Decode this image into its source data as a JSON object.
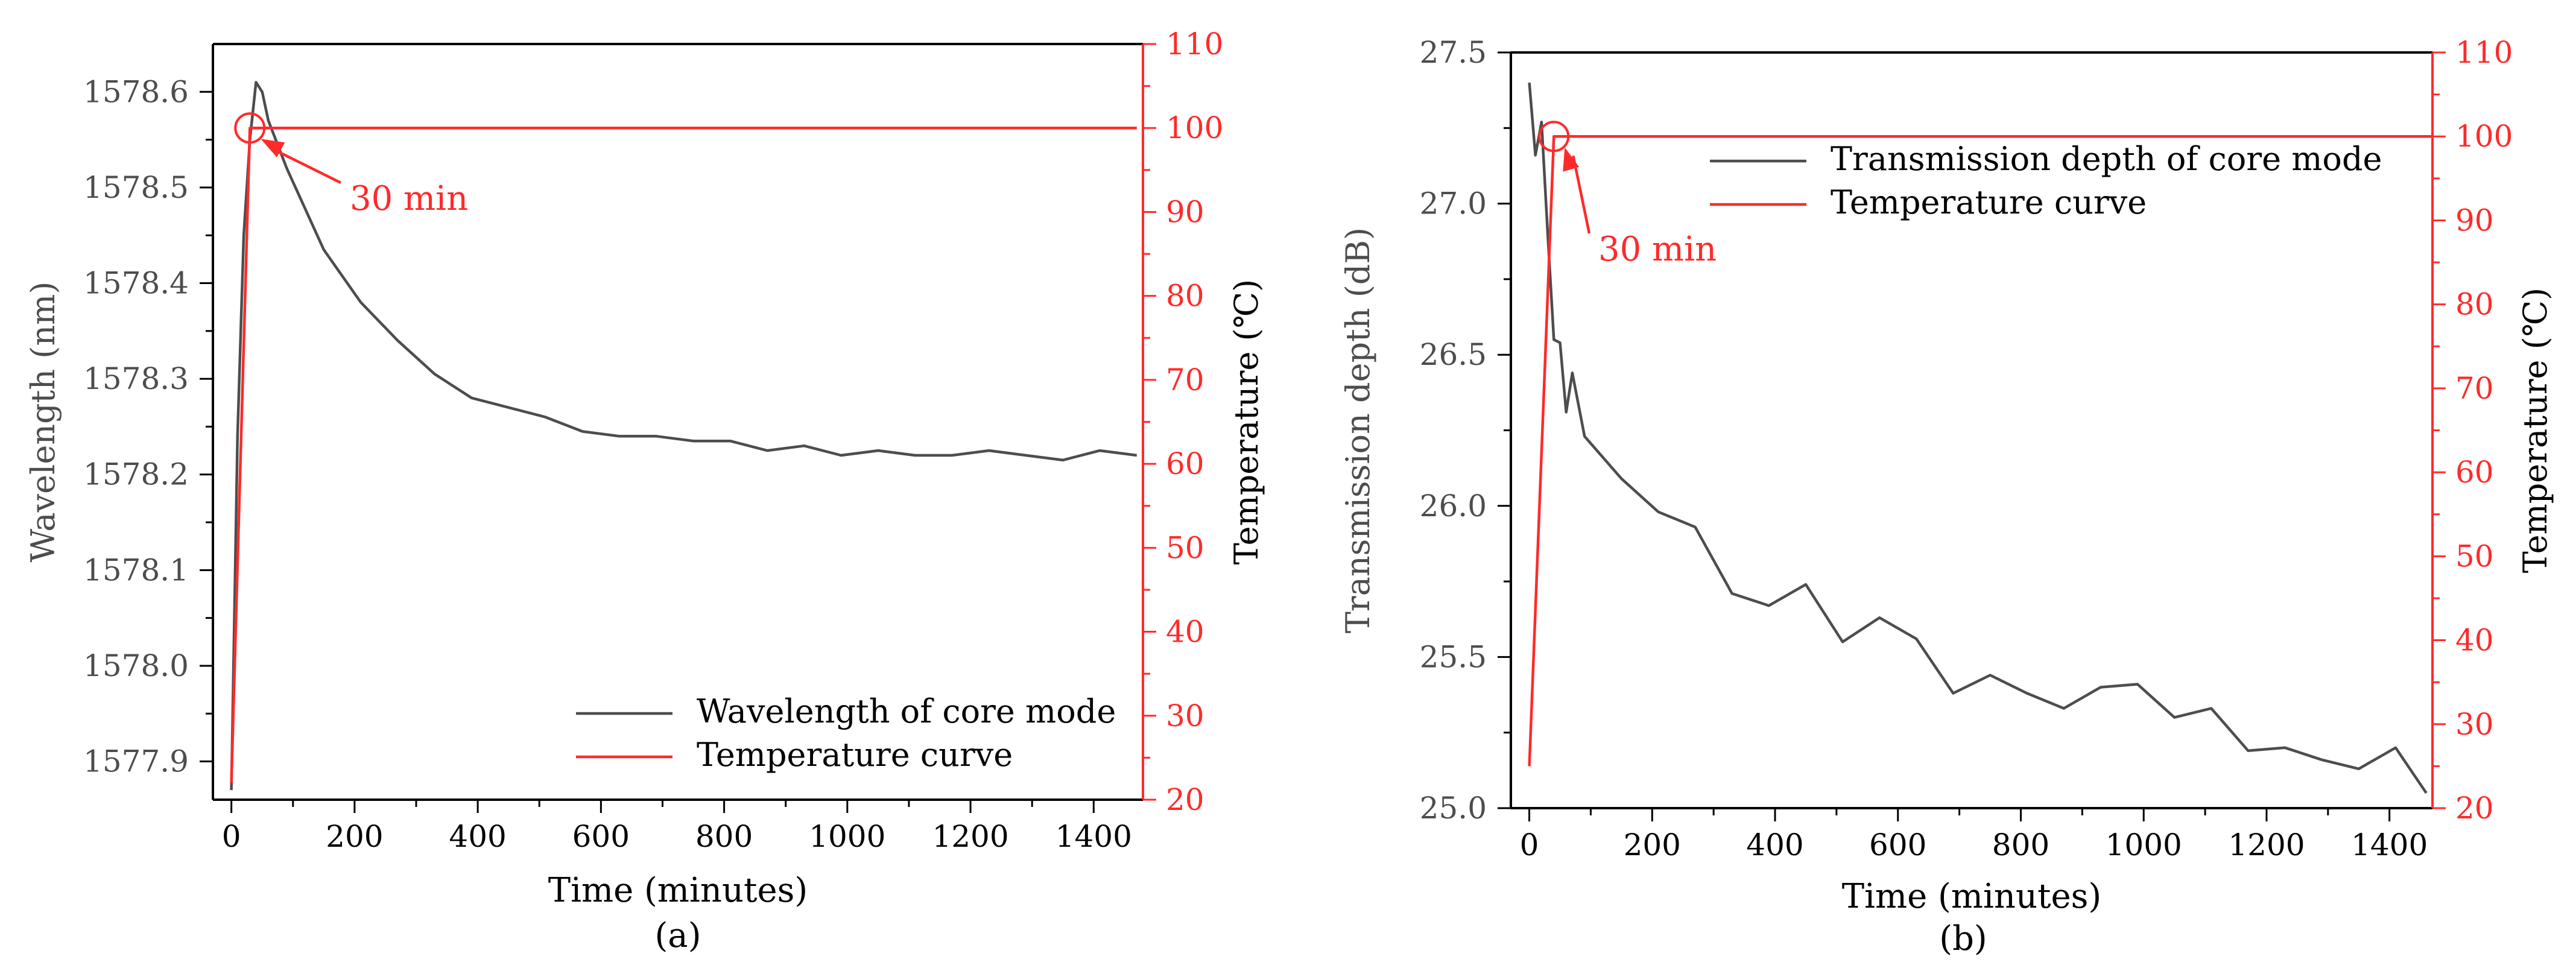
{
  "colors": {
    "primary": "#4d4d4d",
    "temperature": "#ff2a2a",
    "frame": "#000000"
  },
  "chart_data": [
    {
      "type": "line",
      "panel_label": "(a)",
      "xlabel": "Time (minutes)",
      "ylabel": "Wavelength (nm)",
      "ylabel_right": "Temperature (℃)",
      "xlim": [
        -30,
        1480
      ],
      "ylim": [
        1577.86,
        1578.65
      ],
      "ylim_right": [
        20,
        110
      ],
      "xticks": [
        0,
        200,
        400,
        600,
        800,
        1000,
        1200,
        1400
      ],
      "yticks": [
        1577.9,
        1578.0,
        1578.1,
        1578.2,
        1578.3,
        1578.4,
        1578.5,
        1578.6
      ],
      "ytick_labels": [
        "1577.9",
        "1578.0",
        "1578.1",
        "1578.2",
        "1578.3",
        "1578.4",
        "1578.5",
        "1578.6"
      ],
      "yticks_right": [
        20,
        30,
        40,
        50,
        60,
        70,
        80,
        90,
        100,
        110
      ],
      "legend_position": "bottom-right",
      "series": [
        {
          "name": "Wavelength of core mode",
          "axis": "left",
          "x": [
            0,
            10,
            20,
            30,
            40,
            50,
            60,
            90,
            150,
            210,
            270,
            330,
            390,
            450,
            510,
            570,
            630,
            690,
            750,
            810,
            870,
            930,
            990,
            1050,
            1110,
            1170,
            1230,
            1290,
            1350,
            1410,
            1470
          ],
          "values": [
            1577.87,
            1578.24,
            1578.45,
            1578.55,
            1578.61,
            1578.6,
            1578.57,
            1578.52,
            1578.435,
            1578.38,
            1578.34,
            1578.305,
            1578.28,
            1578.27,
            1578.26,
            1578.245,
            1578.24,
            1578.24,
            1578.235,
            1578.235,
            1578.225,
            1578.23,
            1578.22,
            1578.225,
            1578.22,
            1578.22,
            1578.225,
            1578.22,
            1578.215,
            1578.225,
            1578.22
          ]
        },
        {
          "name": "Temperature curve",
          "axis": "right",
          "x": [
            0,
            30,
            1470
          ],
          "values": [
            22,
            100,
            100
          ]
        }
      ],
      "annotation": {
        "text": "30 min",
        "x": 30,
        "y_right": 100
      }
    },
    {
      "type": "line",
      "panel_label": "(b)",
      "xlabel": "Time (minutes)",
      "ylabel": "Transmission depth (dB)",
      "ylabel_right": "Temperature (℃)",
      "xlim": [
        -30,
        1470
      ],
      "ylim": [
        25.0,
        27.5
      ],
      "ylim_right": [
        20,
        110
      ],
      "xticks": [
        0,
        200,
        400,
        600,
        800,
        1000,
        1200,
        1400
      ],
      "yticks": [
        25.0,
        25.5,
        26.0,
        26.5,
        27.0,
        27.5
      ],
      "ytick_labels": [
        "25.0",
        "25.5",
        "26.0",
        "26.5",
        "27.0",
        "27.5"
      ],
      "yticks_right": [
        20,
        30,
        40,
        50,
        60,
        70,
        80,
        90,
        100,
        110
      ],
      "legend_position": "top-right",
      "series": [
        {
          "name": "Transmission depth of core mode",
          "axis": "left",
          "x": [
            0,
            10,
            20,
            30,
            40,
            50,
            60,
            70,
            90,
            150,
            210,
            270,
            330,
            390,
            450,
            510,
            570,
            630,
            690,
            750,
            810,
            870,
            930,
            990,
            1050,
            1110,
            1170,
            1230,
            1290,
            1350,
            1410,
            1460
          ],
          "values": [
            27.4,
            27.16,
            27.27,
            26.9,
            26.55,
            26.54,
            26.31,
            26.44,
            26.23,
            26.09,
            25.98,
            25.93,
            25.71,
            25.67,
            25.74,
            25.55,
            25.63,
            25.56,
            25.38,
            25.44,
            25.38,
            25.33,
            25.4,
            25.41,
            25.3,
            25.33,
            25.19,
            25.2,
            25.16,
            25.13,
            25.2,
            25.05
          ]
        },
        {
          "name": "Temperature curve",
          "axis": "right",
          "x": [
            0,
            40,
            1470
          ],
          "values": [
            25,
            100,
            100
          ]
        }
      ],
      "annotation": {
        "text": "30 min",
        "x": 40,
        "y_right": 100
      }
    }
  ]
}
